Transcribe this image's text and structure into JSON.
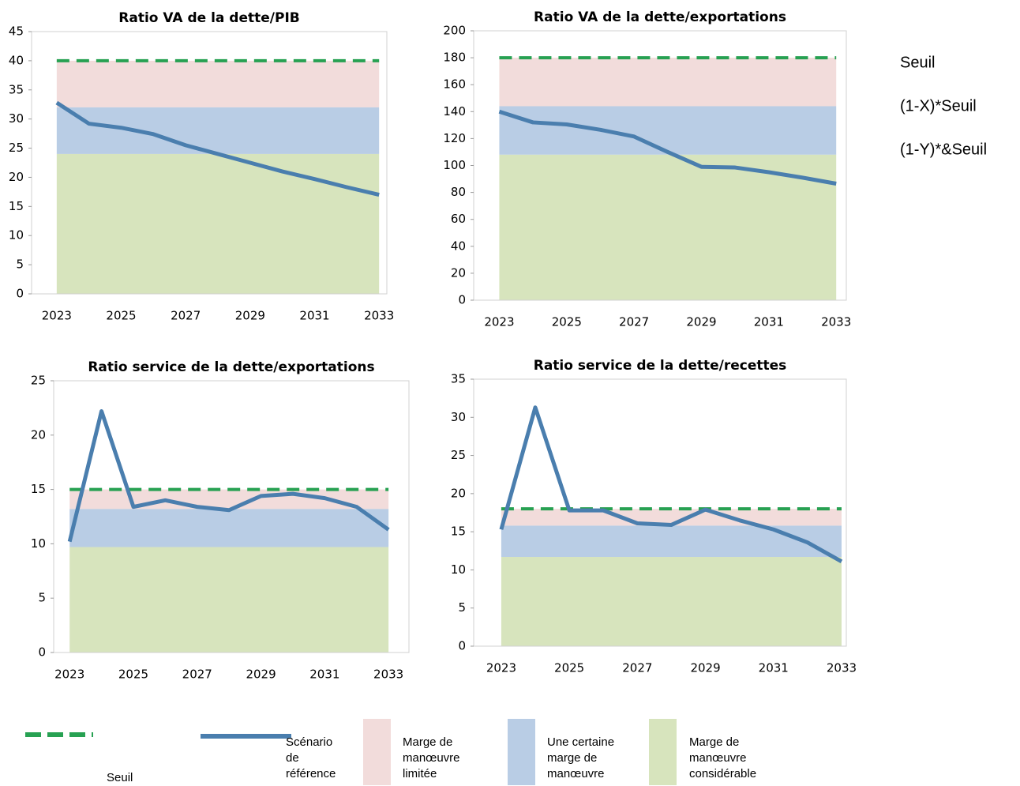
{
  "chart_data": [
    {
      "type": "line",
      "title": "Ratio VA de la dette/PIB",
      "x": [
        2023,
        2024,
        2025,
        2026,
        2027,
        2028,
        2029,
        2030,
        2031,
        2032,
        2033
      ],
      "xticks": [
        2023,
        2025,
        2027,
        2029,
        2031,
        2033
      ],
      "xlim": [
        2022.22,
        2033.24
      ],
      "ylim": [
        0,
        45
      ],
      "yticks": [
        0,
        5,
        10,
        15,
        20,
        25,
        30,
        35,
        40,
        45
      ],
      "values": [
        32.8,
        29.2,
        28.5,
        27.4,
        25.5,
        24.0,
        22.5,
        21.0,
        19.7,
        18.3,
        17.0
      ],
      "threshold": 40,
      "threshold_1_minus_x": 32,
      "threshold_1_minus_y": 24
    },
    {
      "type": "line",
      "title": "Ratio VA de la dette/exportations",
      "x": [
        2023,
        2024,
        2025,
        2026,
        2027,
        2028,
        2029,
        2030,
        2031,
        2032,
        2033
      ],
      "xticks": [
        2023,
        2025,
        2027,
        2029,
        2031,
        2033
      ],
      "xlim": [
        2022.24,
        2033.3
      ],
      "ylim": [
        0,
        200
      ],
      "yticks": [
        0,
        20,
        40,
        60,
        80,
        100,
        120,
        140,
        160,
        180,
        200
      ],
      "values": [
        140,
        132,
        130.5,
        126.5,
        121.5,
        110,
        99,
        98.5,
        95,
        91,
        86.5
      ],
      "threshold": 180,
      "threshold_1_minus_x": 144,
      "threshold_1_minus_y": 108
    },
    {
      "type": "line",
      "title": "Ratio service de la dette/exportations",
      "x": [
        2023,
        2024,
        2025,
        2026,
        2027,
        2028,
        2029,
        2030,
        2031,
        2032,
        2033
      ],
      "xticks": [
        2023,
        2025,
        2027,
        2029,
        2031,
        2033
      ],
      "xlim": [
        2022.5,
        2033.64
      ],
      "ylim": [
        0,
        25
      ],
      "yticks": [
        0,
        5,
        10,
        15,
        20,
        25
      ],
      "values": [
        10.2,
        22.2,
        13.4,
        14.0,
        13.4,
        13.1,
        14.4,
        14.6,
        14.2,
        13.4,
        11.3
      ],
      "threshold": 15,
      "threshold_1_minus_x": 13.2,
      "threshold_1_minus_y": 9.7
    },
    {
      "type": "line",
      "title": "Ratio service de la dette/recettes",
      "x": [
        2023,
        2024,
        2025,
        2026,
        2027,
        2028,
        2029,
        2030,
        2031,
        2032,
        2033
      ],
      "xticks": [
        2023,
        2025,
        2027,
        2029,
        2031,
        2033
      ],
      "xlim": [
        2022.19,
        2033.14
      ],
      "ylim": [
        0,
        35
      ],
      "yticks": [
        0,
        5,
        10,
        15,
        20,
        25,
        30,
        35
      ],
      "values": [
        15.3,
        31.3,
        17.8,
        17.8,
        16.1,
        15.9,
        17.9,
        16.5,
        15.3,
        13.6,
        11.1
      ],
      "threshold": 18,
      "threshold_1_minus_x": 15.8,
      "threshold_1_minus_y": 11.7
    }
  ],
  "side_labels": [
    "Seuil",
    "(1-X)*Seuil",
    "(1-Y)*&Seuil"
  ],
  "legend": [
    {
      "label": "Seuil",
      "color": "#27a152"
    },
    {
      "label": "Scénario de référence",
      "color": "#4a7eae"
    },
    {
      "label": "Marge de manœuvre limitée",
      "color": "#f2dcdb"
    },
    {
      "label": "Une certaine marge de manœuvre",
      "color": "#b9cde5"
    },
    {
      "label": "Marge de manœuvre considérable",
      "color": "#d7e4bd"
    }
  ]
}
